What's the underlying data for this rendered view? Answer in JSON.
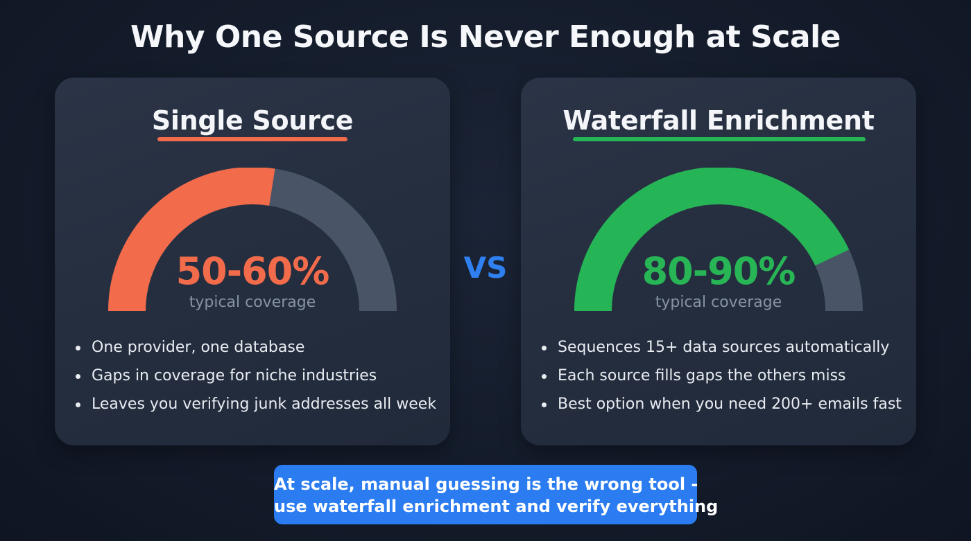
{
  "title": "Why One Source Is Never Enough at Scale",
  "vs_label": "VS",
  "cards": [
    {
      "title": "Single Source",
      "coverage_label": "50-60%",
      "coverage_caption": "typical coverage",
      "gauge_fill_fraction": 0.55,
      "accent_color": "#f26b4a",
      "bullets": [
        "One provider, one database",
        "Gaps in coverage for niche industries",
        "Leaves you verifying junk addresses all week"
      ]
    },
    {
      "title": "Waterfall Enrichment",
      "coverage_label": "80-90%",
      "coverage_caption": "typical coverage",
      "gauge_fill_fraction": 0.86,
      "accent_color": "#25b556",
      "bullets": [
        "Sequences 15+ data sources automatically",
        "Each source fills gaps the others miss",
        "Best option when you need 200+ emails fast"
      ]
    }
  ],
  "banner": {
    "line1": "At scale, manual guessing is the wrong tool -",
    "line2": "use waterfall enrichment and verify everything"
  },
  "colors": {
    "background": "#141c2b",
    "card": "#262f40",
    "gauge_track": "#4a5467",
    "vs": "#2f80f0",
    "banner": "#2a7cf0"
  }
}
